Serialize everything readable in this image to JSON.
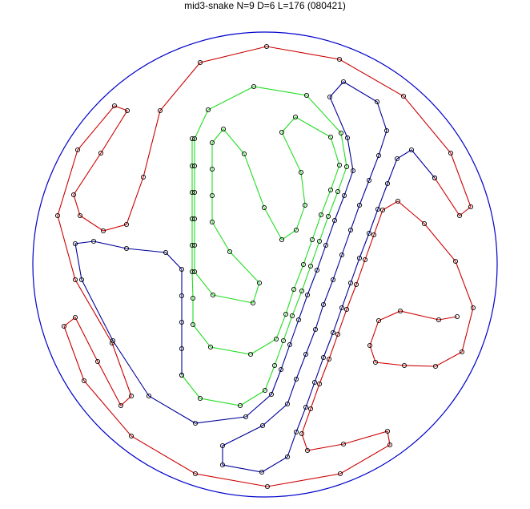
{
  "title": "mid3-snake N=9 D=6 L=176 (080421)",
  "colors": {
    "boundary": "#0000cc",
    "section_green": "#22dd22",
    "section_blue": "#000099",
    "section_red": "#cc0000",
    "marker": "#000000"
  }
}
